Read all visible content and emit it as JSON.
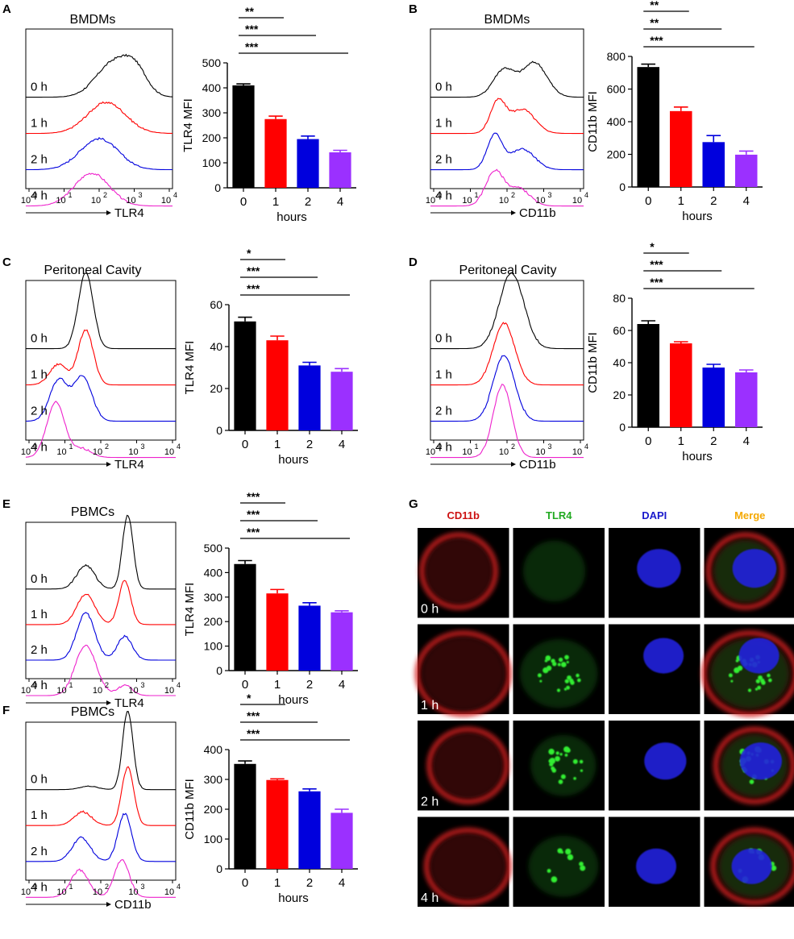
{
  "colors": {
    "t0": "#000000",
    "t1": "#ff0000",
    "t2": "#0000dd",
    "t4": "#ee22cc",
    "bar4": "#9b30ff"
  },
  "panels": {
    "A": {
      "letter": "A",
      "title": "BMDMs"
    },
    "B": {
      "letter": "B",
      "title": "BMDMs"
    },
    "C": {
      "letter": "C",
      "title": "Peritoneal Cavity"
    },
    "D": {
      "letter": "D",
      "title": "Peritoneal Cavity"
    },
    "E": {
      "letter": "E",
      "title": "PBMCs"
    },
    "F": {
      "letter": "F",
      "title": "PBMCs"
    },
    "G": {
      "letter": "G"
    }
  },
  "histogram": {
    "time_labels": [
      "0 h",
      "1 h",
      "2 h",
      "4 h"
    ],
    "tick_labels": [
      "10",
      "0",
      "10",
      "1",
      "10",
      "2",
      "10",
      "3",
      "10",
      "4"
    ]
  },
  "histograms": {
    "A": {
      "marker": "TLR4"
    },
    "B": {
      "marker": "CD11b"
    },
    "C": {
      "marker": "TLR4"
    },
    "D": {
      "marker": "CD11b"
    },
    "E": {
      "marker": "TLR4"
    },
    "F": {
      "marker": "CD11b"
    }
  },
  "chart_data": [
    {
      "id": "A",
      "type": "bar",
      "categories": [
        "0",
        "1",
        "2",
        "4"
      ],
      "values": [
        410,
        275,
        195,
        142
      ],
      "errors": [
        6,
        12,
        12,
        8
      ],
      "ylabel": "TLR4 MFI",
      "xlabel": "hours",
      "ylim": [
        0,
        500
      ],
      "yticks": [
        0,
        100,
        200,
        300,
        400,
        500
      ],
      "significance": [
        {
          "to": "1",
          "label": "**"
        },
        {
          "to": "2",
          "label": "***"
        },
        {
          "to": "4",
          "label": "***"
        }
      ]
    },
    {
      "id": "B",
      "type": "bar",
      "categories": [
        "0",
        "1",
        "2",
        "4"
      ],
      "values": [
        735,
        465,
        275,
        198
      ],
      "errors": [
        18,
        25,
        40,
        22
      ],
      "ylabel": "CD11b MFI",
      "xlabel": "hours",
      "ylim": [
        0,
        800
      ],
      "yticks": [
        0,
        200,
        400,
        600,
        800
      ],
      "significance": [
        {
          "to": "1",
          "label": "**"
        },
        {
          "to": "2",
          "label": "**"
        },
        {
          "to": "4",
          "label": "***"
        }
      ]
    },
    {
      "id": "C",
      "type": "bar",
      "categories": [
        "0",
        "1",
        "2",
        "4"
      ],
      "values": [
        52,
        43,
        31,
        28
      ],
      "errors": [
        2,
        2,
        1.5,
        1.5
      ],
      "ylabel": "TLR4 MFI",
      "xlabel": "hours",
      "ylim": [
        0,
        60
      ],
      "yticks": [
        0,
        20,
        40,
        60
      ],
      "significance": [
        {
          "to": "1",
          "label": "*"
        },
        {
          "to": "2",
          "label": "***"
        },
        {
          "to": "4",
          "label": "***"
        }
      ]
    },
    {
      "id": "D",
      "type": "bar",
      "categories": [
        "0",
        "1",
        "2",
        "4"
      ],
      "values": [
        64,
        52,
        37,
        34
      ],
      "errors": [
        2,
        1,
        2,
        1.5
      ],
      "ylabel": "CD11b MFI",
      "xlabel": "hours",
      "ylim": [
        0,
        80
      ],
      "yticks": [
        0,
        20,
        40,
        60,
        80
      ],
      "significance": [
        {
          "to": "1",
          "label": "*"
        },
        {
          "to": "2",
          "label": "***"
        },
        {
          "to": "4",
          "label": "***"
        }
      ]
    },
    {
      "id": "E",
      "type": "bar",
      "categories": [
        "0",
        "1",
        "2",
        "4"
      ],
      "values": [
        435,
        315,
        265,
        238
      ],
      "errors": [
        14,
        16,
        12,
        6
      ],
      "ylabel": "TLR4 MFI",
      "xlabel": "hours",
      "ylim": [
        0,
        500
      ],
      "yticks": [
        0,
        100,
        200,
        300,
        400,
        500
      ],
      "significance": [
        {
          "to": "1",
          "label": "***"
        },
        {
          "to": "2",
          "label": "***"
        },
        {
          "to": "4",
          "label": "***"
        }
      ]
    },
    {
      "id": "F",
      "type": "bar",
      "categories": [
        "0",
        "1",
        "2",
        "4"
      ],
      "values": [
        352,
        298,
        260,
        188
      ],
      "errors": [
        10,
        4,
        8,
        12
      ],
      "ylabel": "CD11b MFI",
      "xlabel": "hours",
      "ylim": [
        0,
        400
      ],
      "yticks": [
        0,
        100,
        200,
        300,
        400
      ],
      "significance": [
        {
          "to": "1",
          "label": "*"
        },
        {
          "to": "2",
          "label": "***"
        },
        {
          "to": "4",
          "label": "***"
        }
      ]
    }
  ],
  "microscopy": {
    "channels": [
      "CD11b",
      "TLR4",
      "DAPI",
      "Merge"
    ],
    "channel_colors": [
      "#cc1111",
      "#22aa22",
      "#1a1acc",
      "#f5a800"
    ],
    "rows": [
      "0 h",
      "1 h",
      "2 h",
      "4 h"
    ]
  }
}
